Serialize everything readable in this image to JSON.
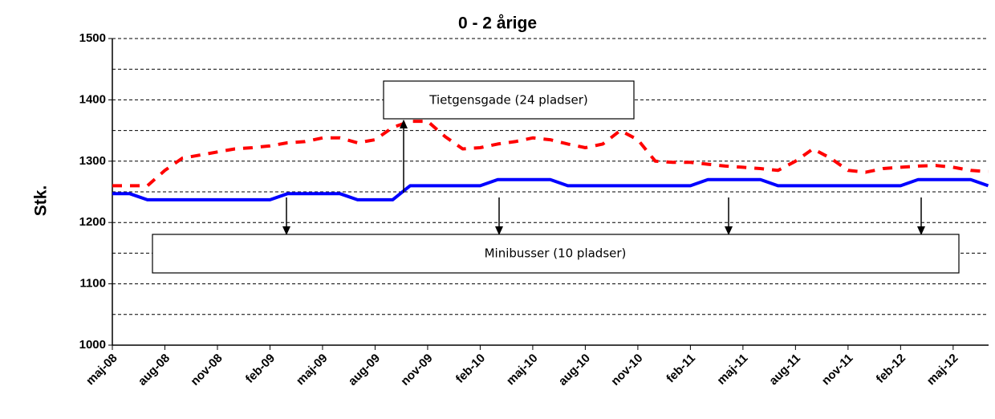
{
  "chart_data": {
    "type": "line",
    "title": "0 - 2 årige",
    "y_label": "Stk.",
    "categories": [
      "maj-08",
      null,
      null,
      "aug-08",
      null,
      null,
      "nov-08",
      null,
      null,
      "feb-09",
      null,
      null,
      "maj-09",
      null,
      null,
      "aug-09",
      null,
      null,
      "nov-09",
      null,
      null,
      "feb-10",
      null,
      null,
      "maj-10",
      null,
      null,
      "aug-10",
      null,
      null,
      "nov-10",
      null,
      null,
      "feb-11",
      null,
      null,
      "maj-11",
      null,
      null,
      "aug-11",
      null,
      null,
      "nov-11",
      null,
      null,
      "feb-12",
      null,
      null,
      "maj-12",
      null,
      null
    ],
    "series": [
      {
        "color": "#ff0000",
        "dashed": true,
        "values": [
          1260,
          1260,
          1260,
          1285,
          1305,
          1310,
          1315,
          1320,
          1322,
          1325,
          1330,
          1332,
          1338,
          1338,
          1330,
          1335,
          1355,
          1365,
          1365,
          1340,
          1320,
          1322,
          1328,
          1332,
          1338,
          1335,
          1328,
          1322,
          1328,
          1350,
          1335,
          1300,
          1298,
          1298,
          1295,
          1292,
          1290,
          1288,
          1285,
          1300,
          1320,
          1305,
          1285,
          1282,
          1288,
          1290,
          1292,
          1293,
          1290,
          1285,
          1283
        ]
      },
      {
        "color": "#0000ff",
        "dashed": false,
        "values": [
          1247,
          1247,
          1237,
          1237,
          1237,
          1237,
          1237,
          1237,
          1237,
          1237,
          1247,
          1247,
          1247,
          1247,
          1237,
          1237,
          1237,
          1260,
          1260,
          1260,
          1260,
          1260,
          1270,
          1270,
          1270,
          1270,
          1260,
          1260,
          1260,
          1260,
          1260,
          1260,
          1260,
          1260,
          1270,
          1270,
          1270,
          1270,
          1260,
          1260,
          1260,
          1260,
          1260,
          1260,
          1260,
          1260,
          1270,
          1270,
          1270,
          1270,
          1260
        ]
      }
    ],
    "ylim": [
      1000,
      1500
    ],
    "yticks": [
      1000,
      1100,
      1200,
      1300,
      1400,
      1500
    ],
    "minor_yticks": [
      1050,
      1150,
      1250,
      1350,
      1450
    ],
    "grid": true,
    "annotations": [
      "Tietgensgade (24 pladser)",
      "Minibusser (10 pladser)"
    ]
  }
}
